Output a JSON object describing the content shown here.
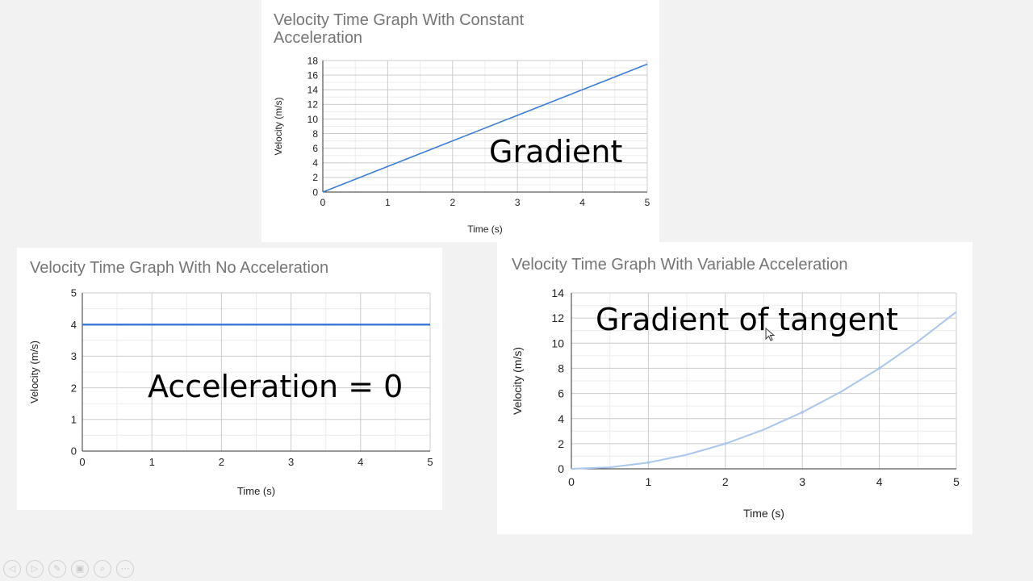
{
  "chart_data": [
    {
      "id": "constant",
      "type": "line",
      "title": "Velocity Time Graph With Constant Acceleration",
      "xlabel": "Time (s)",
      "ylabel": "Velocity (m/s)",
      "xlim": [
        0,
        5
      ],
      "ylim": [
        0,
        18
      ],
      "xticks": [
        "0",
        "1",
        "2",
        "3",
        "4",
        "5"
      ],
      "yticks": [
        "0",
        "2",
        "4",
        "6",
        "8",
        "10",
        "12",
        "14",
        "16",
        "18"
      ],
      "grid": true,
      "color": "#3b7dd8",
      "points": [
        [
          0,
          0
        ],
        [
          5,
          17.5
        ]
      ],
      "annotation": "Gradient"
    },
    {
      "id": "none",
      "type": "line",
      "title": "Velocity Time Graph With No Acceleration",
      "xlabel": "Time (s)",
      "ylabel": "Velocity (m/s)",
      "xlim": [
        0,
        5
      ],
      "ylim": [
        0,
        5
      ],
      "xticks": [
        "0",
        "1",
        "2",
        "3",
        "4",
        "5"
      ],
      "yticks": [
        "0",
        "1",
        "2",
        "3",
        "4",
        "5"
      ],
      "grid": true,
      "color": "#3b7dd8",
      "points": [
        [
          0,
          4
        ],
        [
          5,
          4
        ]
      ],
      "annotation": "Acceleration = 0"
    },
    {
      "id": "variable",
      "type": "line",
      "title": "Velocity Time Graph With Variable Acceleration",
      "xlabel": "Time (s)",
      "ylabel": "Velocity (m/s)",
      "xlim": [
        0,
        5
      ],
      "ylim": [
        0,
        14
      ],
      "xticks": [
        "0",
        "1",
        "2",
        "3",
        "4",
        "5"
      ],
      "yticks": [
        "0",
        "2",
        "4",
        "6",
        "8",
        "10",
        "12",
        "14"
      ],
      "grid": true,
      "color": "#a9c6ee",
      "points": [
        [
          0,
          0
        ],
        [
          0.5,
          0.125
        ],
        [
          1,
          0.5
        ],
        [
          1.5,
          1.125
        ],
        [
          2,
          2
        ],
        [
          2.5,
          3.125
        ],
        [
          3,
          4.5
        ],
        [
          3.5,
          6.125
        ],
        [
          4,
          8
        ],
        [
          4.5,
          10.125
        ],
        [
          5,
          12.5
        ]
      ],
      "markers": [
        [
          1,
          0.5
        ],
        [
          2,
          2
        ],
        [
          3,
          4.5
        ],
        [
          4,
          8
        ]
      ],
      "annotation": "Gradient of tangent"
    }
  ],
  "toolbar": {
    "icons": [
      "back-icon",
      "forward-icon",
      "pen-icon",
      "slides-icon",
      "zoom-icon",
      "more-icon"
    ],
    "glyphs": [
      "◁",
      "▷",
      "✎",
      "▣",
      "⌕",
      "⋯"
    ]
  }
}
